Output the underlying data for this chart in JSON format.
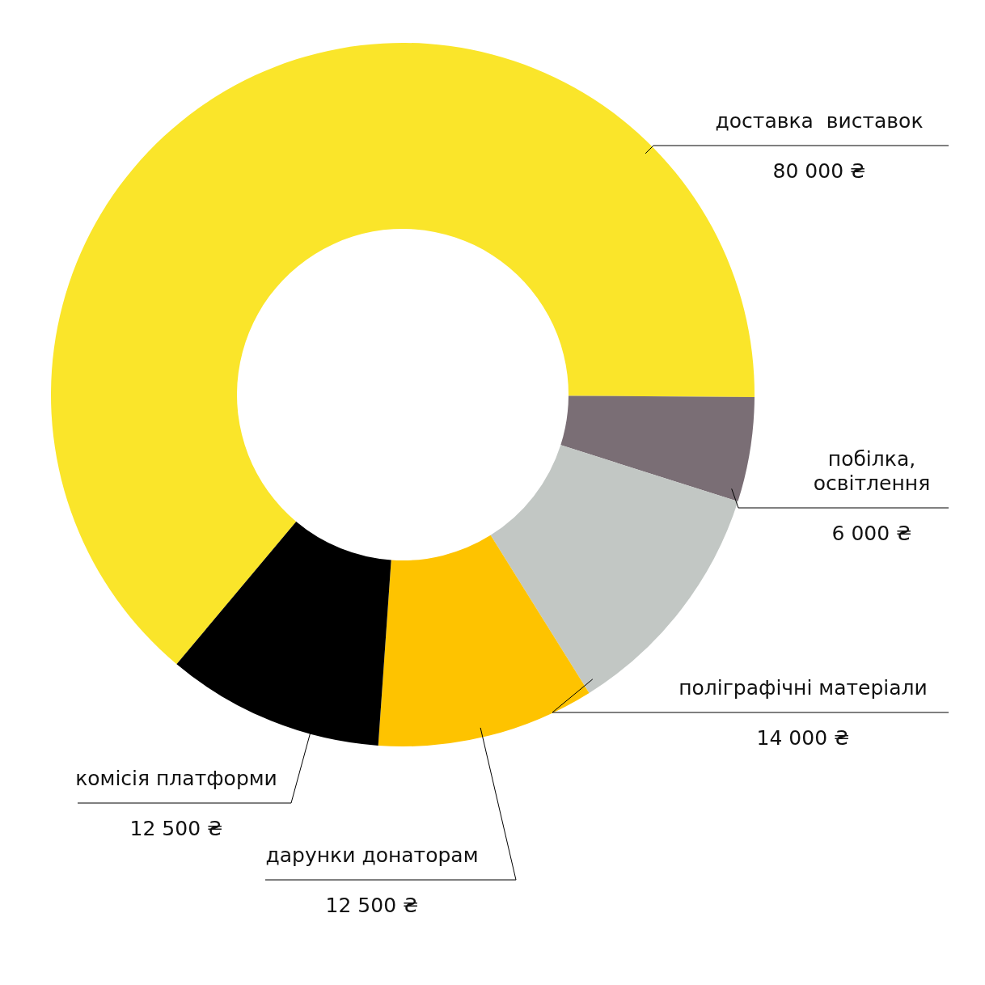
{
  "chart_data": {
    "type": "donut",
    "categories": [
      "доставка  виставок",
      "побілка, освітлення",
      "поліграфічні матеріали",
      "дарунки донаторам",
      "комісія платформи"
    ],
    "values": [
      80000,
      6000,
      14000,
      12500,
      12500
    ],
    "value_labels": [
      "80 000 ₴",
      "6 000 ₴",
      "14 000 ₴",
      "12 500 ₴",
      "12 500 ₴"
    ],
    "colors": [
      "#fae52a",
      "#7a6e75",
      "#c2c7c4",
      "#fec300",
      "#000000"
    ]
  }
}
